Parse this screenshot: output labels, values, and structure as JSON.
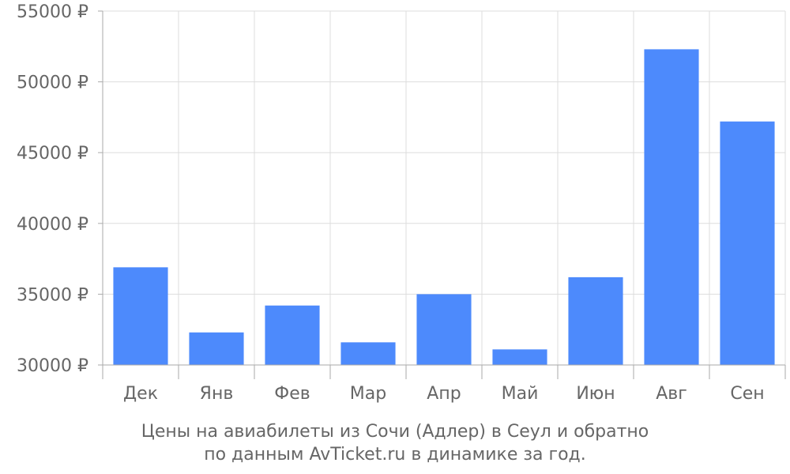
{
  "chart_data": {
    "type": "bar",
    "title": "",
    "xlabel": "",
    "ylabel": "",
    "categories": [
      "Дек",
      "Янв",
      "Фев",
      "Мар",
      "Апр",
      "Май",
      "Июн",
      "Авг",
      "Сен"
    ],
    "values": [
      36900,
      32300,
      34200,
      31600,
      35000,
      31100,
      36200,
      52300,
      47200
    ],
    "ylim": [
      30000,
      55000
    ],
    "yticks": [
      30000,
      35000,
      40000,
      45000,
      50000,
      55000
    ],
    "ytick_suffix": " ₽",
    "grid": true,
    "legend": "none",
    "bar_color": "#4d8afc"
  },
  "caption": {
    "line1": "Цены на авиабилеты из Сочи (Адлер) в Сеул и обратно",
    "line2": "по данным AvTicket.ru в динамике за год."
  }
}
